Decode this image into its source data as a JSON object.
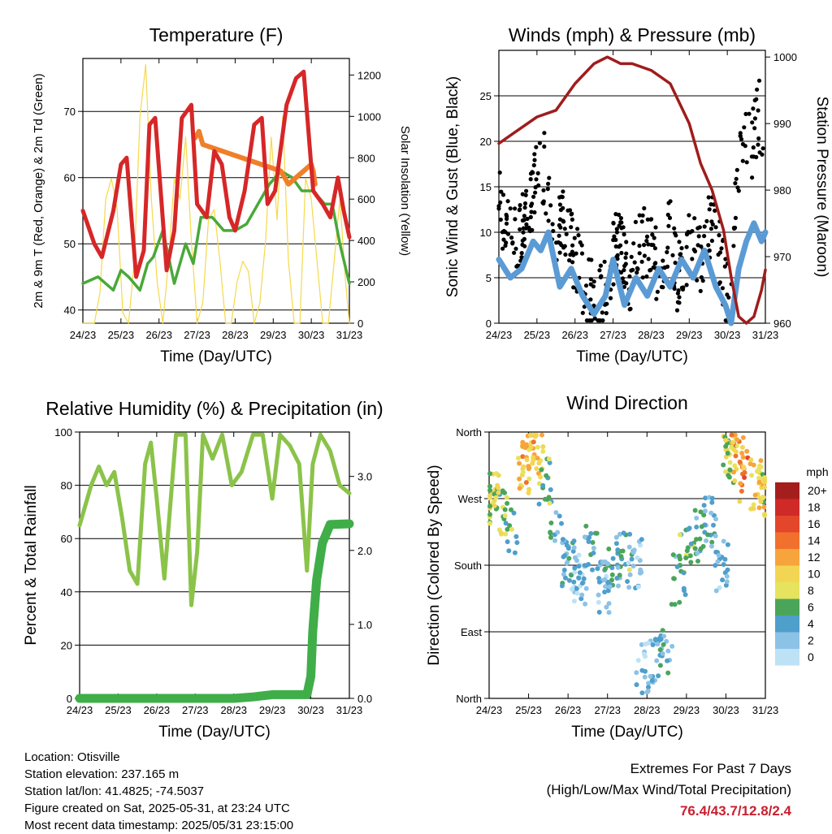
{
  "chart_data": [
    {
      "type": "line",
      "title": "Temperature (F)",
      "xlabel": "Time (Day/UTC)",
      "ylabel": "2m & 9m T (Red, Orange) & 2m Td (Green)",
      "y2label": "Solar Insolation (Yellow)",
      "x_ticks": [
        "24/23",
        "25/23",
        "26/23",
        "27/23",
        "28/23",
        "29/23",
        "30/23",
        "31/23"
      ],
      "xlim": [
        0,
        7
      ],
      "ylim": [
        38,
        78
      ],
      "y_ticks": [
        40,
        50,
        60,
        70
      ],
      "y2lim": [
        0,
        1280
      ],
      "y2_ticks": [
        0,
        200,
        400,
        600,
        800,
        1000,
        1200
      ],
      "grid": "horizontal",
      "colors": {
        "temp2m": "#d62728",
        "temp9m": "#f07f2a",
        "dewpoint": "#4aa83a",
        "solar": "#f5d94a"
      },
      "series": [
        {
          "key": "temp2m",
          "x": [
            0,
            0.3,
            0.5,
            0.8,
            1.0,
            1.15,
            1.4,
            1.6,
            1.75,
            1.9,
            2.2,
            2.4,
            2.6,
            2.85,
            3.0,
            3.25,
            3.45,
            3.65,
            3.85,
            4.0,
            4.25,
            4.5,
            4.7,
            4.85,
            5.05,
            5.35,
            5.6,
            5.8,
            6.05,
            6.3,
            6.5,
            6.7,
            6.85,
            7.0
          ],
          "y": [
            55,
            50,
            48,
            55,
            62,
            63,
            45,
            49,
            68,
            69,
            46,
            52,
            69,
            71,
            56,
            54,
            64,
            62,
            54,
            52,
            58,
            68,
            69,
            56,
            58,
            71,
            75,
            76,
            58,
            56,
            54,
            60,
            55,
            51
          ]
        },
        {
          "key": "temp9m",
          "x": [
            2.95,
            3.05,
            3.15,
            5.2,
            5.3,
            5.4,
            6.0,
            6.05,
            6.1
          ],
          "y": [
            66,
            67,
            65,
            61,
            60,
            59,
            62,
            61,
            59
          ]
        },
        {
          "key": "dewpoint",
          "x": [
            0,
            0.4,
            0.8,
            1.0,
            1.2,
            1.5,
            1.7,
            1.85,
            2.1,
            2.4,
            2.7,
            2.9,
            3.1,
            3.4,
            3.7,
            4.0,
            4.3,
            4.6,
            4.9,
            5.2,
            5.5,
            5.75,
            6.05,
            6.35,
            6.55,
            6.75,
            7.0
          ],
          "y": [
            44,
            45,
            43,
            46,
            45,
            43,
            47,
            48,
            52,
            44,
            50,
            47,
            54,
            54,
            52,
            52,
            53,
            56,
            59,
            61,
            60,
            58,
            58,
            56,
            56,
            50,
            44
          ]
        },
        {
          "key": "solar",
          "x": [
            0,
            0.3,
            0.45,
            0.6,
            0.75,
            0.9,
            1.05,
            1.2,
            1.35,
            1.5,
            1.65,
            1.8,
            1.95,
            2.1,
            2.25,
            2.4,
            2.55,
            2.7,
            2.85,
            3.0,
            3.15,
            3.3,
            3.45,
            3.6,
            3.75,
            3.9,
            4.05,
            4.2,
            4.35,
            4.5,
            4.65,
            4.8,
            4.95,
            5.1,
            5.25,
            5.4,
            5.55,
            5.7,
            5.85,
            6.0,
            6.15,
            6.3,
            6.45,
            6.6,
            6.75,
            6.9,
            7.0
          ],
          "y": [
            0,
            0,
            150,
            600,
            700,
            550,
            50,
            0,
            300,
            1000,
            1250,
            600,
            200,
            0,
            300,
            700,
            600,
            900,
            400,
            0,
            100,
            500,
            550,
            300,
            0,
            0,
            200,
            300,
            250,
            0,
            100,
            400,
            900,
            500,
            1000,
            300,
            0,
            0,
            700,
            600,
            300,
            0,
            0,
            300,
            600,
            200,
            0
          ]
        }
      ]
    },
    {
      "type": "scatter",
      "title": "Winds (mph) & Pressure (mb)",
      "xlabel": "Time (Day/UTC)",
      "ylabel": "Sonic Wind & Gust (Blue, Black)",
      "y2label": "Station Pressure (Maroon)",
      "x_ticks": [
        "24/23",
        "25/23",
        "26/23",
        "27/23",
        "28/23",
        "29/23",
        "30/23",
        "31/23"
      ],
      "xlim": [
        0,
        7
      ],
      "ylim": [
        0,
        30
      ],
      "y_ticks": [
        0,
        5,
        10,
        15,
        20,
        25
      ],
      "y2lim": [
        960,
        1001
      ],
      "y2_ticks": [
        960,
        970,
        980,
        990,
        1000
      ],
      "grid": "horizontal",
      "colors": {
        "wind": "#5b9bd5",
        "gust": "#000000",
        "pressure": "#a01c1c"
      },
      "series": [
        {
          "key": "wind",
          "x": [
            0,
            0.3,
            0.6,
            0.9,
            1.1,
            1.3,
            1.6,
            1.9,
            2.2,
            2.5,
            2.8,
            3.0,
            3.3,
            3.6,
            3.9,
            4.2,
            4.5,
            4.8,
            5.1,
            5.4,
            5.7,
            5.95,
            6.1,
            6.3,
            6.5,
            6.7,
            6.9,
            7.0
          ],
          "y": [
            7,
            5,
            6,
            9,
            8,
            10,
            4,
            6,
            3,
            1,
            3,
            7,
            2,
            5,
            3,
            6,
            4,
            7,
            5,
            8,
            4,
            2,
            0,
            6,
            9,
            11,
            9,
            10
          ]
        },
        {
          "key": "gust",
          "x": [
            0,
            0.2,
            0.5,
            0.8,
            1.0,
            1.2,
            1.4,
            1.7,
            2.0,
            2.3,
            2.6,
            2.9,
            3.1,
            3.4,
            3.6,
            3.9,
            4.2,
            4.5,
            4.7,
            5.0,
            5.3,
            5.6,
            5.9,
            6.1,
            6.25,
            6.4,
            6.6,
            6.8,
            7.0
          ],
          "y": [
            13,
            11,
            9,
            12,
            18,
            17,
            9,
            11,
            7,
            4,
            2,
            5,
            10,
            4,
            8,
            9,
            6,
            10,
            5,
            9,
            7,
            12,
            5,
            1,
            16,
            21,
            19,
            23,
            22
          ]
        },
        {
          "key": "pressure",
          "x": [
            0,
            0.5,
            1.0,
            1.5,
            2.0,
            2.5,
            2.85,
            3.2,
            3.5,
            4.0,
            4.5,
            5.0,
            5.3,
            5.6,
            5.9,
            6.1,
            6.3,
            6.5,
            6.7,
            6.9,
            7.0
          ],
          "y": [
            987,
            989,
            991,
            992,
            996,
            999,
            1000,
            999,
            999,
            998,
            996,
            990,
            984,
            980,
            974,
            967,
            961,
            960,
            961,
            965,
            968
          ]
        }
      ]
    },
    {
      "type": "line",
      "title": "Relative Humidity (%) & Precipitation (in)",
      "xlabel": "Time (Day/UTC)",
      "ylabel": "Percent & Total Rainfall",
      "x_ticks": [
        "24/23",
        "25/23",
        "26/23",
        "27/23",
        "28/23",
        "29/23",
        "30/23",
        "31/23"
      ],
      "xlim": [
        0,
        7
      ],
      "ylim": [
        0,
        100
      ],
      "y_ticks": [
        0,
        20,
        40,
        60,
        80,
        100
      ],
      "y2lim": [
        0,
        3.6
      ],
      "y2_ticks": [
        "0.0",
        "1.0",
        "2.0",
        "3.0"
      ],
      "grid": "horizontal",
      "colors": {
        "rh": "#8bc34a",
        "precip": "#3fae49"
      },
      "series": [
        {
          "key": "rh",
          "x": [
            0,
            0.3,
            0.5,
            0.7,
            0.9,
            1.1,
            1.3,
            1.5,
            1.7,
            1.85,
            2.0,
            2.2,
            2.5,
            2.75,
            2.9,
            3.05,
            3.2,
            3.45,
            3.7,
            3.95,
            4.2,
            4.5,
            4.75,
            5.0,
            5.2,
            5.45,
            5.7,
            5.9,
            6.05,
            6.25,
            6.5,
            6.75,
            7.0
          ],
          "y": [
            65,
            80,
            87,
            80,
            85,
            68,
            48,
            43,
            88,
            96,
            75,
            45,
            99,
            99,
            35,
            55,
            99,
            90,
            99,
            80,
            85,
            99,
            99,
            75,
            99,
            95,
            88,
            48,
            88,
            99,
            93,
            80,
            77
          ]
        },
        {
          "key": "precip",
          "x": [
            0,
            1,
            2,
            3,
            4,
            4.5,
            5,
            5.5,
            5.9,
            6.0,
            6.05,
            6.15,
            6.3,
            6.5,
            7.0
          ],
          "y": [
            0,
            0,
            0,
            0,
            0,
            0.02,
            0.05,
            0.05,
            0.05,
            0.3,
            0.9,
            1.6,
            2.1,
            2.35,
            2.36
          ]
        }
      ]
    },
    {
      "type": "scatter",
      "title": "Wind Direction",
      "xlabel": "Time (Day/UTC)",
      "ylabel": "Direction (Colored By Speed)",
      "x_ticks": [
        "24/23",
        "25/23",
        "26/23",
        "27/23",
        "28/23",
        "29/23",
        "30/23",
        "31/23"
      ],
      "xlim": [
        0,
        7
      ],
      "ylim": [
        0,
        360
      ],
      "y_ticks": [
        "North",
        "East",
        "South",
        "West",
        "North"
      ],
      "grid": "horizontal",
      "legend_title": "mph",
      "legend_labels": [
        "20+",
        "18",
        "16",
        "14",
        "12",
        "10",
        "8",
        "6",
        "4",
        "2",
        "0"
      ],
      "legend_colors": [
        "#a51e1e",
        "#cf2a27",
        "#e3462a",
        "#f1702d",
        "#f7a43c",
        "#f3d554",
        "#e6e35e",
        "#4aa55a",
        "#4f9fcb",
        "#8cc2e6",
        "#bde2f5"
      ],
      "series": [
        {
          "name": "",
          "x": [
            0.1,
            0.3,
            0.6,
            0.9,
            1.0,
            1.2,
            1.4,
            1.7,
            2.0,
            2.3,
            2.6,
            2.9,
            3.1,
            3.4,
            3.7,
            3.9,
            4.2,
            4.5,
            4.8,
            5.0,
            5.3,
            5.6,
            5.9,
            6.1,
            6.3,
            6.5,
            6.8,
            7.0
          ],
          "y": [
            270,
            250,
            230,
            310,
            320,
            330,
            290,
            240,
            180,
            160,
            200,
            150,
            170,
            190,
            180,
            40,
            50,
            60,
            160,
            200,
            220,
            240,
            180,
            320,
            340,
            300,
            290,
            280
          ],
          "speed": [
            8,
            7,
            5,
            10,
            12,
            11,
            6,
            4,
            3,
            2,
            4,
            3,
            4,
            5,
            3,
            2,
            3,
            4,
            5,
            6,
            5,
            4,
            3,
            8,
            12,
            13,
            10,
            9
          ]
        }
      ]
    }
  ],
  "info": {
    "location": "Location: Otisville",
    "elevation": "Station elevation: 237.165 m",
    "latlon": "Station lat/lon: 41.4825; -74.5037",
    "created": "Figure created on Sat, 2025-05-31, at 23:24 UTC",
    "recent": "Most recent data timestamp: 2025/05/31 23:15:00"
  },
  "extremes": {
    "title": "Extremes For Past 7 Days",
    "subtitle": "(High/Low/Max Wind/Total Precipitation)",
    "values": "76.4/43.7/12.8/2.4"
  }
}
